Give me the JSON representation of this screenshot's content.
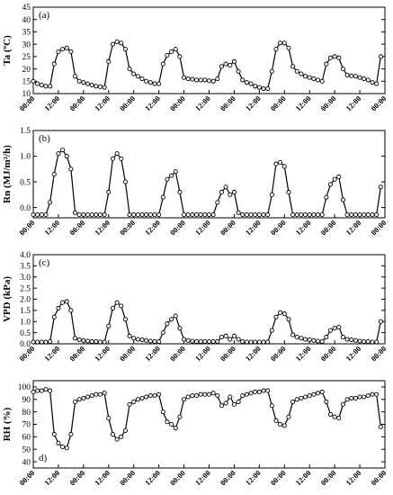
{
  "chart_data": [
    {
      "type": "line",
      "panel_label": "(a)",
      "ylabel": "Ta (ºC)",
      "ylim": [
        10,
        45
      ],
      "yticks": [
        "10",
        "15",
        "20",
        "25",
        "30",
        "35",
        "40",
        "45"
      ],
      "x_tick_labels": [
        "00:00",
        "12:00",
        "00:00",
        "12:00",
        "00:00",
        "12:00",
        "00:00",
        "12:00",
        "00:00",
        "12:00",
        "00:00",
        "12:00",
        "00:00",
        "12:00",
        "00:00"
      ],
      "x": [
        0,
        2,
        4,
        6,
        8,
        10,
        12,
        14,
        16,
        18,
        20,
        22,
        24,
        26,
        28,
        30,
        32,
        34,
        36,
        38,
        40,
        42,
        44,
        46,
        48,
        50,
        52,
        54,
        56,
        58,
        60,
        62,
        64,
        66,
        68,
        70,
        72,
        74,
        76,
        78,
        80,
        82,
        84,
        86,
        88,
        90,
        92,
        94,
        96,
        98,
        100,
        102,
        104,
        106,
        108,
        110,
        112,
        114,
        116,
        118,
        120,
        122,
        124,
        126,
        128,
        130,
        132,
        134,
        136,
        138,
        140,
        142,
        144,
        146,
        148,
        150,
        152,
        154,
        156,
        158,
        160,
        162,
        164,
        166
      ],
      "series": [
        {
          "values": [
            15,
            14,
            13.5,
            13,
            13,
            22,
            27,
            28,
            28.5,
            27,
            17,
            15,
            14.5,
            14,
            13.5,
            13,
            12.8,
            12.5,
            23,
            30,
            31,
            30.5,
            28,
            20,
            18,
            17,
            16,
            15,
            14.5,
            14,
            14,
            22,
            25.5,
            27,
            28,
            25,
            16.5,
            16,
            15.8,
            15.5,
            15.5,
            15.5,
            15.2,
            15,
            16,
            21,
            22,
            21.5,
            23,
            19,
            15.5,
            14.5,
            14,
            13,
            12.5,
            12,
            12,
            19,
            28,
            30.5,
            30.5,
            28.5,
            21,
            19,
            18,
            17,
            16.5,
            16,
            15.5,
            15,
            22,
            24.5,
            25,
            24.5,
            20,
            17.5,
            17.2,
            17,
            16.5,
            16,
            15.5,
            14.5,
            14,
            25
          ]
        }
      ]
    },
    {
      "type": "line",
      "panel_label": "(b)",
      "ylabel": "Rn (MJ/m²/h)",
      "ylim": [
        -0.2,
        1.5
      ],
      "yticks": [
        "0.0",
        "0.5",
        "1.0",
        "1.5"
      ],
      "x_tick_labels": [
        "00:00",
        "12:00",
        "00:00",
        "12:00",
        "00:00",
        "12:00",
        "00:00",
        "12:00",
        "00:00",
        "12:00",
        "00:00",
        "12:00",
        "00:00",
        "12:00",
        "00:00"
      ],
      "x": [
        0,
        2,
        4,
        6,
        8,
        10,
        12,
        14,
        16,
        18,
        20,
        22,
        24,
        26,
        28,
        30,
        32,
        34,
        36,
        38,
        40,
        42,
        44,
        46,
        48,
        50,
        52,
        54,
        56,
        58,
        60,
        62,
        64,
        66,
        68,
        70,
        72,
        74,
        76,
        78,
        80,
        82,
        84,
        86,
        88,
        90,
        92,
        94,
        96,
        98,
        100,
        102,
        104,
        106,
        108,
        110,
        112,
        114,
        116,
        118,
        120,
        122,
        124,
        126,
        128,
        130,
        132,
        134,
        136,
        138,
        140,
        142,
        144,
        146,
        148,
        150,
        152,
        154,
        156,
        158,
        160,
        162,
        164,
        166
      ],
      "series": [
        {
          "values": [
            -0.14,
            -0.14,
            -0.14,
            -0.14,
            0.1,
            0.65,
            1.05,
            1.12,
            1.0,
            0.75,
            -0.1,
            -0.14,
            -0.14,
            -0.14,
            -0.14,
            -0.14,
            -0.14,
            -0.14,
            0.3,
            0.95,
            1.05,
            0.95,
            0.5,
            -0.14,
            -0.14,
            -0.14,
            -0.14,
            -0.14,
            -0.14,
            -0.14,
            -0.14,
            0.2,
            0.55,
            0.62,
            0.7,
            0.3,
            -0.14,
            -0.14,
            -0.14,
            -0.14,
            -0.14,
            -0.14,
            -0.14,
            -0.14,
            0.1,
            0.3,
            0.4,
            0.25,
            0.3,
            -0.1,
            -0.14,
            -0.14,
            -0.14,
            -0.14,
            -0.14,
            -0.14,
            -0.14,
            0.25,
            0.85,
            0.88,
            0.8,
            0.3,
            -0.14,
            -0.14,
            -0.14,
            -0.14,
            -0.14,
            -0.14,
            -0.14,
            -0.14,
            0.2,
            0.45,
            0.55,
            0.6,
            0.15,
            -0.14,
            -0.14,
            -0.14,
            -0.14,
            -0.14,
            -0.14,
            -0.14,
            -0.14,
            0.4
          ]
        }
      ]
    },
    {
      "type": "line",
      "panel_label": "(c)",
      "ylabel": "VPD (kPa)",
      "ylim": [
        0,
        4
      ],
      "yticks": [
        "0.0",
        "0.5",
        "1.0",
        "1.5",
        "2.0",
        "2.5",
        "3.0",
        "3.5",
        "4.0"
      ],
      "x_tick_labels": [
        "00:00",
        "12:00",
        "00:00",
        "12:00",
        "00:00",
        "12:00",
        "00:00",
        "12:00",
        "00:00",
        "12:00",
        "00:00",
        "12:00",
        "00:00",
        "12:00",
        "00:00"
      ],
      "x": [
        0,
        2,
        4,
        6,
        8,
        10,
        12,
        14,
        16,
        18,
        20,
        22,
        24,
        26,
        28,
        30,
        32,
        34,
        36,
        38,
        40,
        42,
        44,
        46,
        48,
        50,
        52,
        54,
        56,
        58,
        60,
        62,
        64,
        66,
        68,
        70,
        72,
        74,
        76,
        78,
        80,
        82,
        84,
        86,
        88,
        90,
        92,
        94,
        96,
        98,
        100,
        102,
        104,
        106,
        108,
        110,
        112,
        114,
        116,
        118,
        120,
        122,
        124,
        126,
        128,
        130,
        132,
        134,
        136,
        138,
        140,
        142,
        144,
        146,
        148,
        150,
        152,
        154,
        156,
        158,
        160,
        162,
        164,
        166
      ],
      "series": [
        {
          "values": [
            0.08,
            0.08,
            0.08,
            0.08,
            0.1,
            1.2,
            1.6,
            1.85,
            1.9,
            1.5,
            0.25,
            0.18,
            0.15,
            0.12,
            0.1,
            0.1,
            0.08,
            0.08,
            0.8,
            1.6,
            1.85,
            1.7,
            1.1,
            0.35,
            0.25,
            0.2,
            0.18,
            0.15,
            0.12,
            0.1,
            0.1,
            0.5,
            0.9,
            1.1,
            1.25,
            0.7,
            0.2,
            0.15,
            0.12,
            0.1,
            0.1,
            0.1,
            0.1,
            0.1,
            0.1,
            0.3,
            0.35,
            0.2,
            0.35,
            0.2,
            0.1,
            0.08,
            0.08,
            0.08,
            0.08,
            0.08,
            0.08,
            0.6,
            1.2,
            1.4,
            1.35,
            1.1,
            0.4,
            0.3,
            0.25,
            0.2,
            0.18,
            0.15,
            0.12,
            0.1,
            0.3,
            0.6,
            0.7,
            0.75,
            0.3,
            0.2,
            0.18,
            0.15,
            0.12,
            0.1,
            0.1,
            0.08,
            0.08,
            1.0
          ]
        }
      ]
    },
    {
      "type": "line",
      "panel_label": "d)",
      "ylabel": "RH (%)",
      "ylim": [
        35,
        105
      ],
      "yticks": [
        "40",
        "50",
        "60",
        "70",
        "80",
        "90",
        "100"
      ],
      "x_tick_labels": [
        "00:00",
        "12:00",
        "00:00",
        "12:00",
        "00:00",
        "12:00",
        "00:00",
        "12:00",
        "00:00",
        "12:00",
        "00:00",
        "12:00",
        "00:00",
        "12:00",
        "00:00"
      ],
      "x": [
        0,
        2,
        4,
        6,
        8,
        10,
        12,
        14,
        16,
        18,
        20,
        22,
        24,
        26,
        28,
        30,
        32,
        34,
        36,
        38,
        40,
        42,
        44,
        46,
        48,
        50,
        52,
        54,
        56,
        58,
        60,
        62,
        64,
        66,
        68,
        70,
        72,
        74,
        76,
        78,
        80,
        82,
        84,
        86,
        88,
        90,
        92,
        94,
        96,
        98,
        100,
        102,
        104,
        106,
        108,
        110,
        112,
        114,
        116,
        118,
        120,
        122,
        124,
        126,
        128,
        130,
        132,
        134,
        136,
        138,
        140,
        142,
        144,
        146,
        148,
        150,
        152,
        154,
        156,
        158,
        160,
        162,
        164,
        166
      ],
      "series": [
        {
          "values": [
            96,
            97,
            97,
            98,
            97,
            62,
            55,
            52,
            51,
            62,
            88,
            90,
            91,
            92,
            93,
            94,
            94,
            95,
            75,
            62,
            58,
            60,
            65,
            86,
            88,
            90,
            91,
            92,
            93,
            93,
            94,
            80,
            72,
            70,
            67,
            76,
            90,
            92,
            93,
            93,
            94,
            94,
            94,
            95,
            93,
            85,
            87,
            92,
            86,
            88,
            93,
            94,
            95,
            96,
            96,
            97,
            97,
            85,
            73,
            70,
            69,
            76,
            88,
            90,
            91,
            92,
            93,
            94,
            95,
            96,
            88,
            78,
            76,
            75,
            86,
            90,
            91,
            91,
            92,
            92,
            93,
            94,
            94,
            68
          ]
        }
      ]
    }
  ]
}
